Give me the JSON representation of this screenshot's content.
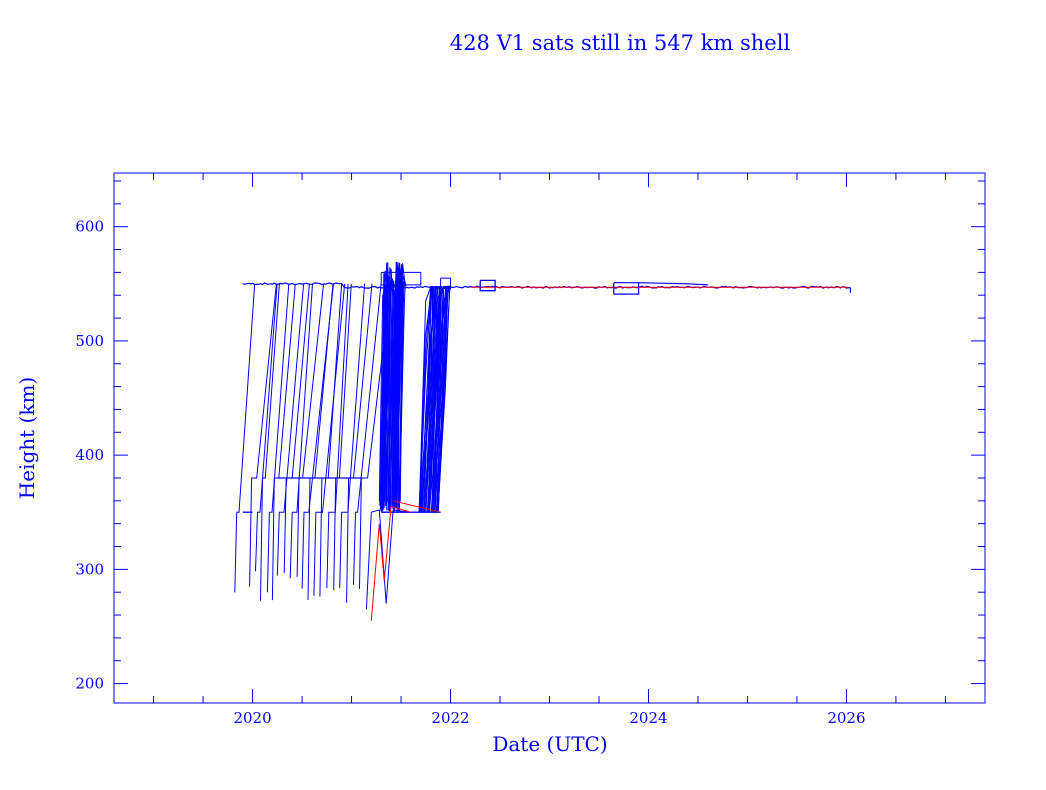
{
  "chart_data": {
    "type": "line",
    "title": "428 V1 sats still in 547 km shell",
    "xlabel": "Date (UTC)",
    "ylabel": "Height (km)",
    "xlim": [
      2018.6,
      2027.4
    ],
    "ylim": [
      183,
      647
    ],
    "x_ticks": [
      2020,
      2022,
      2024,
      2026
    ],
    "x_tick_labels": [
      "2020",
      "2022",
      "2024",
      "2026"
    ],
    "y_ticks": [
      200,
      300,
      400,
      500,
      600
    ],
    "y_tick_labels": [
      "200",
      "300",
      "400",
      "500",
      "600"
    ],
    "grid": false,
    "legend": "none",
    "colors": {
      "axes": "#0000ff",
      "series": "#0000ff",
      "highlight": "#ff0000"
    },
    "shell_height_km": 547,
    "series": [
      {
        "x": [
          2019.8,
          2019.87,
          2019.9,
          2020.0,
          2020.3,
          2020.5,
          2020.6,
          2020.8,
          2020.9,
          2021.0,
          2021.2,
          2021.4,
          2021.6,
          2021.8,
          2022.0,
          2022.3,
          2022.6,
          2023.0,
          2023.5,
          2023.7,
          2024.0,
          2024.5,
          2025.0,
          2025.5,
          2026.0
        ],
        "y": [
          295,
          350,
          350,
          550,
          550,
          550,
          549,
          549,
          549,
          548,
          548,
          548,
          548,
          549,
          549,
          548,
          547,
          547,
          547,
          547,
          547,
          547,
          547,
          547,
          545
        ]
      },
      {
        "x": [
          2019.97,
          2020.1,
          2020.5,
          2020.9,
          2021.0
        ],
        "y": [
          285,
          380,
          380,
          380,
          550
        ]
      },
      {
        "x": [
          2021.15,
          2021.2,
          2021.3,
          2021.35,
          2021.4,
          2021.5,
          2021.6,
          2021.7,
          2021.8,
          2021.9,
          2022.0,
          2022.2
        ],
        "y": [
          260,
          350,
          350,
          350,
          350,
          350,
          350,
          350,
          350,
          350,
          548,
          548
        ]
      },
      {
        "x": [
          2021.2,
          2021.3,
          2021.42,
          2021.6,
          2021.9
        ],
        "y": [
          255,
          350,
          350,
          355,
          350
        ]
      }
    ]
  }
}
